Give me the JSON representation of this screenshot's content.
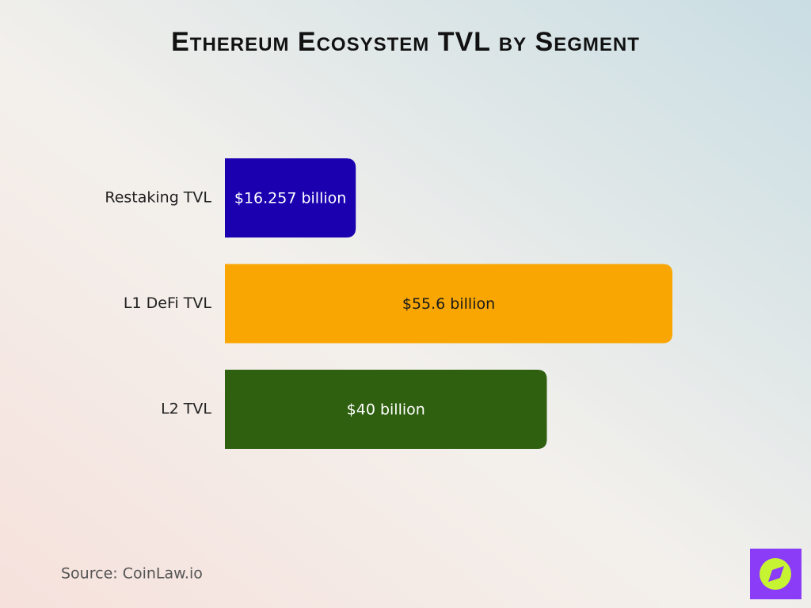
{
  "chart_data": {
    "type": "bar",
    "orientation": "horizontal",
    "title": "Ethereum Ecosystem TVL by Segment",
    "categories": [
      "Restaking TVL",
      "L1 DeFi TVL",
      "L2 TVL"
    ],
    "values": [
      16.257,
      55.6,
      40
    ],
    "value_labels": [
      "$16.257 billion",
      "$55.6 billion",
      "$40 billion"
    ],
    "colors": [
      "#1b00b0",
      "#f9a602",
      "#2f6010"
    ],
    "label_colors": [
      "#ffffff",
      "#1a1a1a",
      "#ffffff"
    ],
    "source": "Source: CoinLaw.io"
  }
}
